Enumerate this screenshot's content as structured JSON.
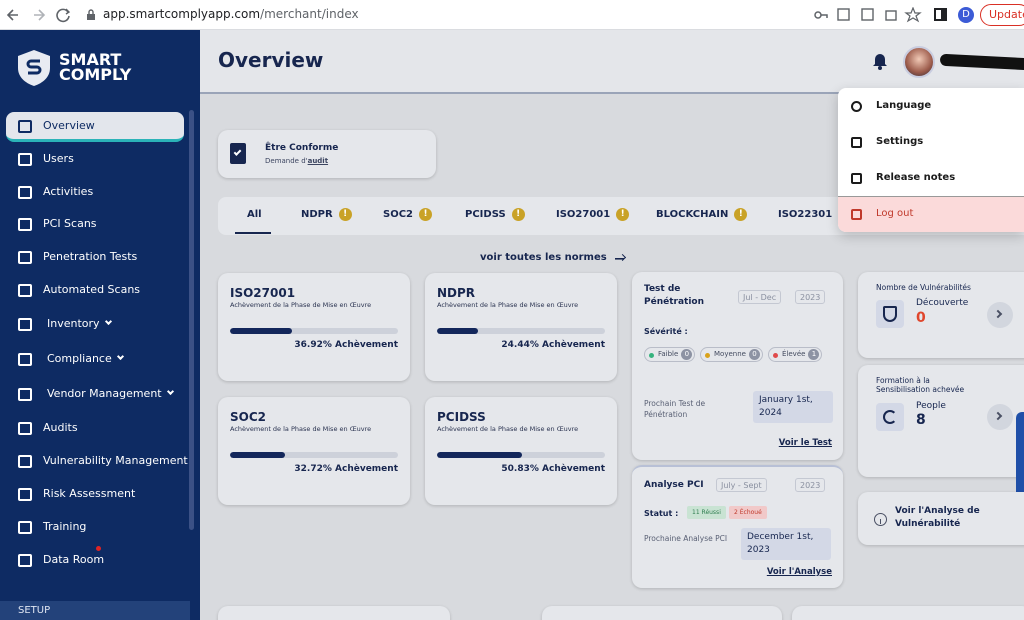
{
  "browser": {
    "url_host": "app.smartcomplyapp.com",
    "url_path": "/merchant/index",
    "profile": "D",
    "update_button": "Update"
  },
  "sidebar": {
    "logo": [
      "SMART",
      "COMPLY"
    ],
    "items": [
      "Overview",
      "Users",
      "Activities",
      "PCI Scans",
      "Penetration Tests",
      "Automated Scans",
      "Inventory",
      "Compliance",
      "Vendor Management",
      "Audits",
      "Vulnerability Management",
      "Risk Assessment",
      "Training",
      "Data Room"
    ],
    "section": "SETUP"
  },
  "header": {
    "title": "Overview"
  },
  "user_menu": {
    "items": [
      "Language",
      "Settings",
      "Release notes",
      "Log out"
    ]
  },
  "compliance_card": {
    "title": "Être Conforme",
    "subtitle": "Demande d'",
    "link": "audit"
  },
  "tabs": {
    "items": [
      "All",
      "NDPR",
      "SOC2",
      "PCIDSS",
      "ISO27001",
      "BLOCKCHAIN",
      "ISO22301"
    ],
    "badge": "!"
  },
  "see_all": "voir toutes les normes",
  "standards": [
    {
      "name": "ISO27001",
      "subtitle": "Achèvement de la Phase de Mise en Œuvre",
      "progress": 36.92,
      "progress_label": "36.92% Achèvement"
    },
    {
      "name": "NDPR",
      "subtitle": "Achèvement de la Phase de Mise en Œuvre",
      "progress": 24.44,
      "progress_label": "24.44% Achèvement"
    },
    {
      "name": "SOC2",
      "subtitle": "Achèvement de la Phase de Mise en Œuvre",
      "progress": 32.72,
      "progress_label": "32.72% Achèvement"
    },
    {
      "name": "PCIDSS",
      "subtitle": "Achèvement de la Phase de Mise en Œuvre",
      "progress": 50.83,
      "progress_label": "50.83% Achèvement"
    }
  ],
  "pentest": {
    "title": "Test de Pénétration",
    "period": "Jul - Dec",
    "year": "2023",
    "severity": "Sévérité :",
    "levels": [
      {
        "name": "Faible",
        "count": 0
      },
      {
        "name": "Moyenne",
        "count": 0
      },
      {
        "name": "Élevée",
        "count": 1
      }
    ],
    "next_label": "Prochain Test de Pénétration",
    "next_date": "January 1st, 2024",
    "link": "Voir le Test"
  },
  "pci": {
    "title": "Analyse PCI",
    "period": "July - Sept",
    "year": "2023",
    "status": "Statut :",
    "passed": "11 Réussi",
    "failed": "2 Échoué",
    "next_label": "Prochaine Analyse PCI",
    "next_date": "December 1st, 2023",
    "link": "Voir l'Analyse"
  },
  "vulnerabilities": {
    "title": "Nombre de Vulnérabilités",
    "label": "Découverte",
    "count": 0
  },
  "training": {
    "title": "Formation à la Sensibilisation achevée",
    "label": "People",
    "count": 8
  },
  "vulnerability_link": "Voir l'Analyse de Vulnérabilité"
}
